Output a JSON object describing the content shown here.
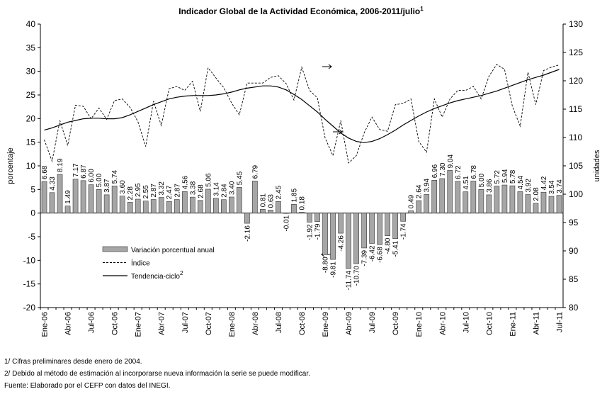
{
  "chart_data": {
    "type": "combo",
    "title": "Indicador Global de la Actividad Económica, 2006-2011/julio",
    "title_superscript": "1",
    "ylabel": "porcentaje",
    "y2label": "unidades",
    "categories": [
      "Ene-06",
      null,
      null,
      "Abr-06",
      null,
      null,
      "Jul-06",
      null,
      null,
      "Oct-06",
      null,
      null,
      "Ene-07",
      null,
      null,
      "Abr-07",
      null,
      null,
      "Jul-07",
      null,
      null,
      "Oct-07",
      null,
      null,
      "Ene-08",
      null,
      null,
      "Abr-08",
      null,
      null,
      "Jul-08",
      null,
      null,
      "Oct-08",
      null,
      null,
      "Ene-09",
      null,
      null,
      "Abr-09",
      null,
      null,
      "Jul-09",
      null,
      null,
      "Oct-09",
      null,
      null,
      "Ene-10",
      null,
      null,
      "Abr-10",
      null,
      null,
      "Jul-10",
      null,
      null,
      "Oct-10",
      null,
      null,
      "Ene-11",
      null,
      null,
      "Abr-11",
      null,
      null,
      "Jul-11"
    ],
    "series": [
      {
        "name": "Variación porcentual anual",
        "kind": "bar",
        "color": "#a6a6a6",
        "values": [
          6.68,
          4.33,
          8.19,
          1.49,
          7.17,
          6.87,
          6.0,
          5.0,
          3.87,
          5.74,
          3.6,
          2.28,
          2.95,
          2.55,
          2.87,
          3.32,
          2.47,
          2.87,
          4.56,
          3.38,
          2.68,
          5.06,
          3.14,
          2.84,
          3.4,
          5.45,
          -2.16,
          6.79,
          0.81,
          0.63,
          2.45,
          -0.01,
          1.85,
          0.18,
          -1.92,
          -1.79,
          -8.8,
          -9.81,
          -4.26,
          -11.74,
          -10.7,
          -7.39,
          -6.42,
          -6.68,
          -4.8,
          -5.41,
          -1.74,
          0.49,
          2.64,
          3.94,
          6.96,
          7.3,
          9.04,
          6.72,
          4.51,
          6.78,
          5.0,
          3.86,
          5.72,
          5.94,
          5.78,
          4.54,
          3.92,
          2.08,
          4.42,
          3.54,
          3.74
        ],
        "value_labels": [
          "6.68",
          "4.33",
          "8.19",
          "1.49",
          "7.17",
          "6.87",
          "6.00",
          "5.00",
          "3.87",
          "5.74",
          "3.60",
          "2.28",
          "2.95",
          "2.55",
          "2.87",
          "3.32",
          "2.47",
          "2.87",
          "4.56",
          "3.38",
          "2.68",
          "5.06",
          "3.14",
          "2.84",
          "3.40",
          "5.45",
          "-2.16",
          "6.79",
          "0.81",
          "0.63",
          "2.45",
          "-0.01",
          "1.85",
          "0.18",
          "-1.92",
          "-1.79",
          "-8.80",
          "-9.81",
          "-4.26",
          "-11.74",
          "-10.70",
          "-7.39",
          "-6.42",
          "-6.68",
          "-4.80",
          "-5.41",
          "-1.74",
          "0.49",
          "2.64",
          "3.94",
          "6.96",
          "7.30",
          "9.04",
          "6.72",
          "4.51",
          "6.78",
          "5.00",
          "3.86",
          "5.72",
          "5.94",
          "5.78",
          "4.54",
          "3.92",
          "2.08",
          "4.42",
          "3.54",
          "3.74"
        ]
      },
      {
        "name": "Índice",
        "kind": "line",
        "dashed": true,
        "axis": "y2",
        "color": "#000000",
        "values": [
          109.6,
          105.8,
          113,
          108.6,
          115.7,
          115.5,
          113.3,
          115.2,
          113.2,
          116.5,
          116.8,
          115.3,
          112.8,
          108.4,
          116.4,
          112.1,
          118.6,
          119,
          118.3,
          119.9,
          114.6,
          122.3,
          120.5,
          118.8,
          116.1,
          114,
          119.6,
          119.6,
          119.6,
          120.6,
          120.9,
          119.5,
          116.6,
          122.4,
          118.3,
          117,
          109.9,
          106.8,
          113,
          105.5,
          106.8,
          110.8,
          113.6,
          111.4,
          111.1,
          115.8,
          116,
          116.8,
          109.3,
          107.4,
          116.8,
          113.6,
          116.8,
          118.3,
          118.3,
          119,
          116.8,
          120.8,
          122.9,
          122,
          115.5,
          112,
          121.5,
          115.8,
          121.8,
          122.4,
          122.8
        ]
      },
      {
        "name": "Tendencia-ciclo",
        "name_superscript": "2",
        "kind": "line",
        "dashed": false,
        "axis": "y2",
        "color": "#000000",
        "values": [
          111.3,
          111.7,
          112.2,
          112.7,
          113.0,
          113.3,
          113.4,
          113.4,
          113.3,
          113.3,
          113.5,
          114.0,
          114.6,
          115.2,
          115.8,
          116.3,
          116.8,
          117.1,
          117.3,
          117.4,
          117.4,
          117.4,
          117.5,
          117.7,
          118.0,
          118.4,
          118.7,
          118.9,
          119.1,
          119.1,
          118.9,
          118.4,
          117.6,
          116.7,
          115.6,
          114.5,
          113.2,
          112.0,
          110.8,
          109.9,
          109.3,
          109.1,
          109.3,
          109.8,
          110.5,
          111.3,
          112.2,
          113.0,
          113.8,
          114.5,
          115.1,
          115.6,
          116.1,
          116.5,
          116.8,
          117.1,
          117.4,
          117.8,
          118.2,
          118.7,
          119.2,
          119.7,
          120.2,
          120.6,
          121.0,
          121.5,
          122.0
        ]
      }
    ],
    "ylim": [
      -20,
      40
    ],
    "yticks": [
      -20,
      -15,
      -10,
      -5,
      0,
      5,
      10,
      15,
      20,
      25,
      30,
      35,
      40
    ],
    "y2lim": [
      80,
      130
    ],
    "y2ticks": [
      80,
      85,
      90,
      95,
      100,
      105,
      110,
      115,
      120,
      125,
      130
    ],
    "grid": false,
    "legend": "lower-left",
    "notes": [
      "1/ Cifras preliminares desde enero de 2004.",
      "2/ Debido al método de estimación al incorporarse nueva información la serie se puede modificar.",
      "Fuente: Elaborado por el CEFP con datos del INEGI."
    ]
  }
}
